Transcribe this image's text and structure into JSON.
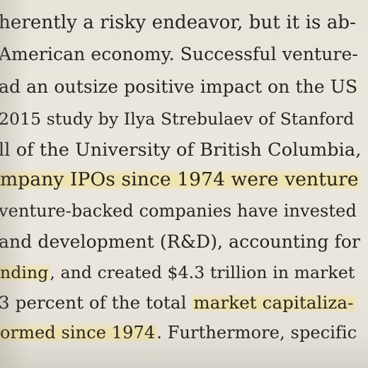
{
  "document": {
    "lines": [
      {
        "text": "herently a risky endeavor, but it is ab-"
      },
      {
        "text": "American economy. Successful venture-"
      },
      {
        "text": "ad an outsize positive impact on the US"
      },
      {
        "text": "2015 study by Ilya Strebulaev of Stanford"
      },
      {
        "text": "ll of the University of British Columbia,"
      },
      {
        "text": "mpany IPOs since 1974 were venture",
        "highlighted": true
      },
      {
        "text": "venture-backed companies have invested"
      },
      {
        "text": "and development (R&D), accounting for"
      },
      {
        "text": "nding, and created $4.3 trillion in market",
        "highlight_prefix": "nding"
      },
      {
        "text": "3 percent of the total market capitaliza-",
        "highlight_suffix": "market capitaliza-"
      },
      {
        "text": "ormed since 1974. Furthermore, specific",
        "highlight_prefix": "ormed since 1974"
      }
    ]
  },
  "colors": {
    "paper": "#e9e5dc",
    "ink": "#27231f",
    "highlighter": "#f2e28c"
  }
}
